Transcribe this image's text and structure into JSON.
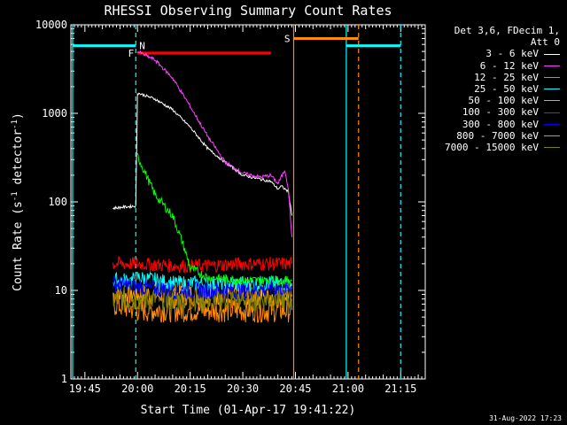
{
  "chart_data": {
    "type": "line",
    "title": "RHESSI Observing Summary Count Rates",
    "xlabel": "Start Time (01-Apr-17 19:41:22)",
    "ylabel": "Count Rate (s⁻¹ detector⁻¹)",
    "ylog": true,
    "ylim": [
      1,
      10000
    ],
    "xlim_minutes_after_1941": [
      0,
      101
    ],
    "x_ticks": [
      "19:45",
      "20:00",
      "20:15",
      "20:30",
      "20:45",
      "21:00",
      "21:15"
    ],
    "y_ticks": [
      "1",
      "10",
      "100",
      "1000",
      "10000"
    ],
    "legend_header": [
      "Det 3,6, FDecim 1,",
      "Att 0"
    ],
    "series": [
      {
        "name": "3 - 6 keV",
        "color": "#ffffff",
        "x": [
          "19:53",
          "19:57",
          "19:59.5",
          "20:00",
          "20:05",
          "20:10",
          "20:15",
          "20:20",
          "20:25",
          "20:30",
          "20:35",
          "20:38",
          "20:40",
          "20:41",
          "20:43",
          "20:44"
        ],
        "y": [
          85,
          88,
          90,
          1700,
          1450,
          1100,
          700,
          400,
          280,
          200,
          180,
          170,
          140,
          150,
          130,
          70
        ]
      },
      {
        "name": "6 - 12 keV",
        "color": "#ff40ff",
        "x": [
          "20:00",
          "20:05",
          "20:10",
          "20:15",
          "20:20",
          "20:25",
          "20:30",
          "20:35",
          "20:38",
          "20:40",
          "20:42",
          "20:43",
          "20:44"
        ],
        "y": [
          5000,
          4000,
          2500,
          1200,
          550,
          280,
          210,
          190,
          200,
          160,
          230,
          140,
          40
        ]
      },
      {
        "name": "12 - 25 keV",
        "color": "#00ff00",
        "x": [
          "20:00",
          "20:05",
          "20:10",
          "20:13",
          "20:15",
          "20:20",
          "20:30",
          "20:44"
        ],
        "y": [
          330,
          120,
          70,
          33,
          18,
          14,
          13,
          13
        ]
      },
      {
        "name": "25 - 50 keV",
        "color": "#00ffff",
        "x": [
          "19:53",
          "19:57",
          "19:59.5",
          "20:00",
          "20:05",
          "20:10",
          "20:20",
          "20:30",
          "20:44"
        ],
        "y": [
          13,
          13,
          13,
          14,
          13,
          12,
          12,
          12,
          12
        ]
      },
      {
        "name": "50 - 100 keV",
        "color": "#ffaa00",
        "x": [
          "19:53",
          "20:00",
          "20:10",
          "20:20",
          "20:30",
          "20:44"
        ],
        "y": [
          9,
          9,
          9,
          9,
          9,
          9
        ]
      },
      {
        "name": "100 - 300 keV",
        "color": "#ff0000",
        "x": [
          "19:53",
          "20:00",
          "20:10",
          "20:20",
          "20:30",
          "20:44"
        ],
        "y": [
          20,
          20,
          19,
          19,
          20,
          20
        ]
      },
      {
        "name": "300 - 800 keV",
        "color": "#0000ff",
        "x": [
          "19:53",
          "20:00",
          "20:10",
          "20:20",
          "20:30",
          "20:44"
        ],
        "y": [
          12,
          11,
          10,
          10,
          10,
          11
        ]
      },
      {
        "name": "800 - 7000 keV",
        "color": "#ff8c00",
        "x": [
          "19:53",
          "20:00",
          "20:10",
          "20:20",
          "20:30",
          "20:44"
        ],
        "y": [
          7,
          6,
          6,
          6,
          6,
          6
        ]
      },
      {
        "name": "7000 - 15000 keV",
        "color": "#808000",
        "x": [
          "19:53",
          "20:00",
          "20:10",
          "20:20",
          "20:30",
          "20:44"
        ],
        "y": [
          8,
          8,
          8,
          8,
          8,
          8
        ]
      }
    ],
    "annotations": [
      {
        "label": "N",
        "color": "#00ffff",
        "x_range": [
          "19:41.5",
          "19:59.5"
        ],
        "y": 5800
      },
      {
        "label": "",
        "color": "#00ffff",
        "x_range": [
          "20:59.5",
          "21:15"
        ],
        "y": 5800
      },
      {
        "label": "F",
        "color": "#ff0000",
        "x_range": [
          "20:00",
          "20:38"
        ],
        "y": 4800
      },
      {
        "label": "S",
        "color": "#ff8c00",
        "x_range": [
          "20:44.5",
          "21:03"
        ],
        "y": 7000
      }
    ],
    "vlines": [
      {
        "x": "19:41.5",
        "color": "#00ffff",
        "style": "solid"
      },
      {
        "x": "19:59.5",
        "color": "#00ffff",
        "style": "dashed"
      },
      {
        "x": "20:44.5",
        "color": "#ff8c00",
        "style": "solid"
      },
      {
        "x": "20:59.5",
        "color": "#00ffff",
        "style": "solid"
      },
      {
        "x": "21:03",
        "color": "#ff8c00",
        "style": "dashed"
      },
      {
        "x": "21:15",
        "color": "#00ffff",
        "style": "dashed"
      }
    ]
  },
  "timestamp": "31-Aug-2022 17:23"
}
